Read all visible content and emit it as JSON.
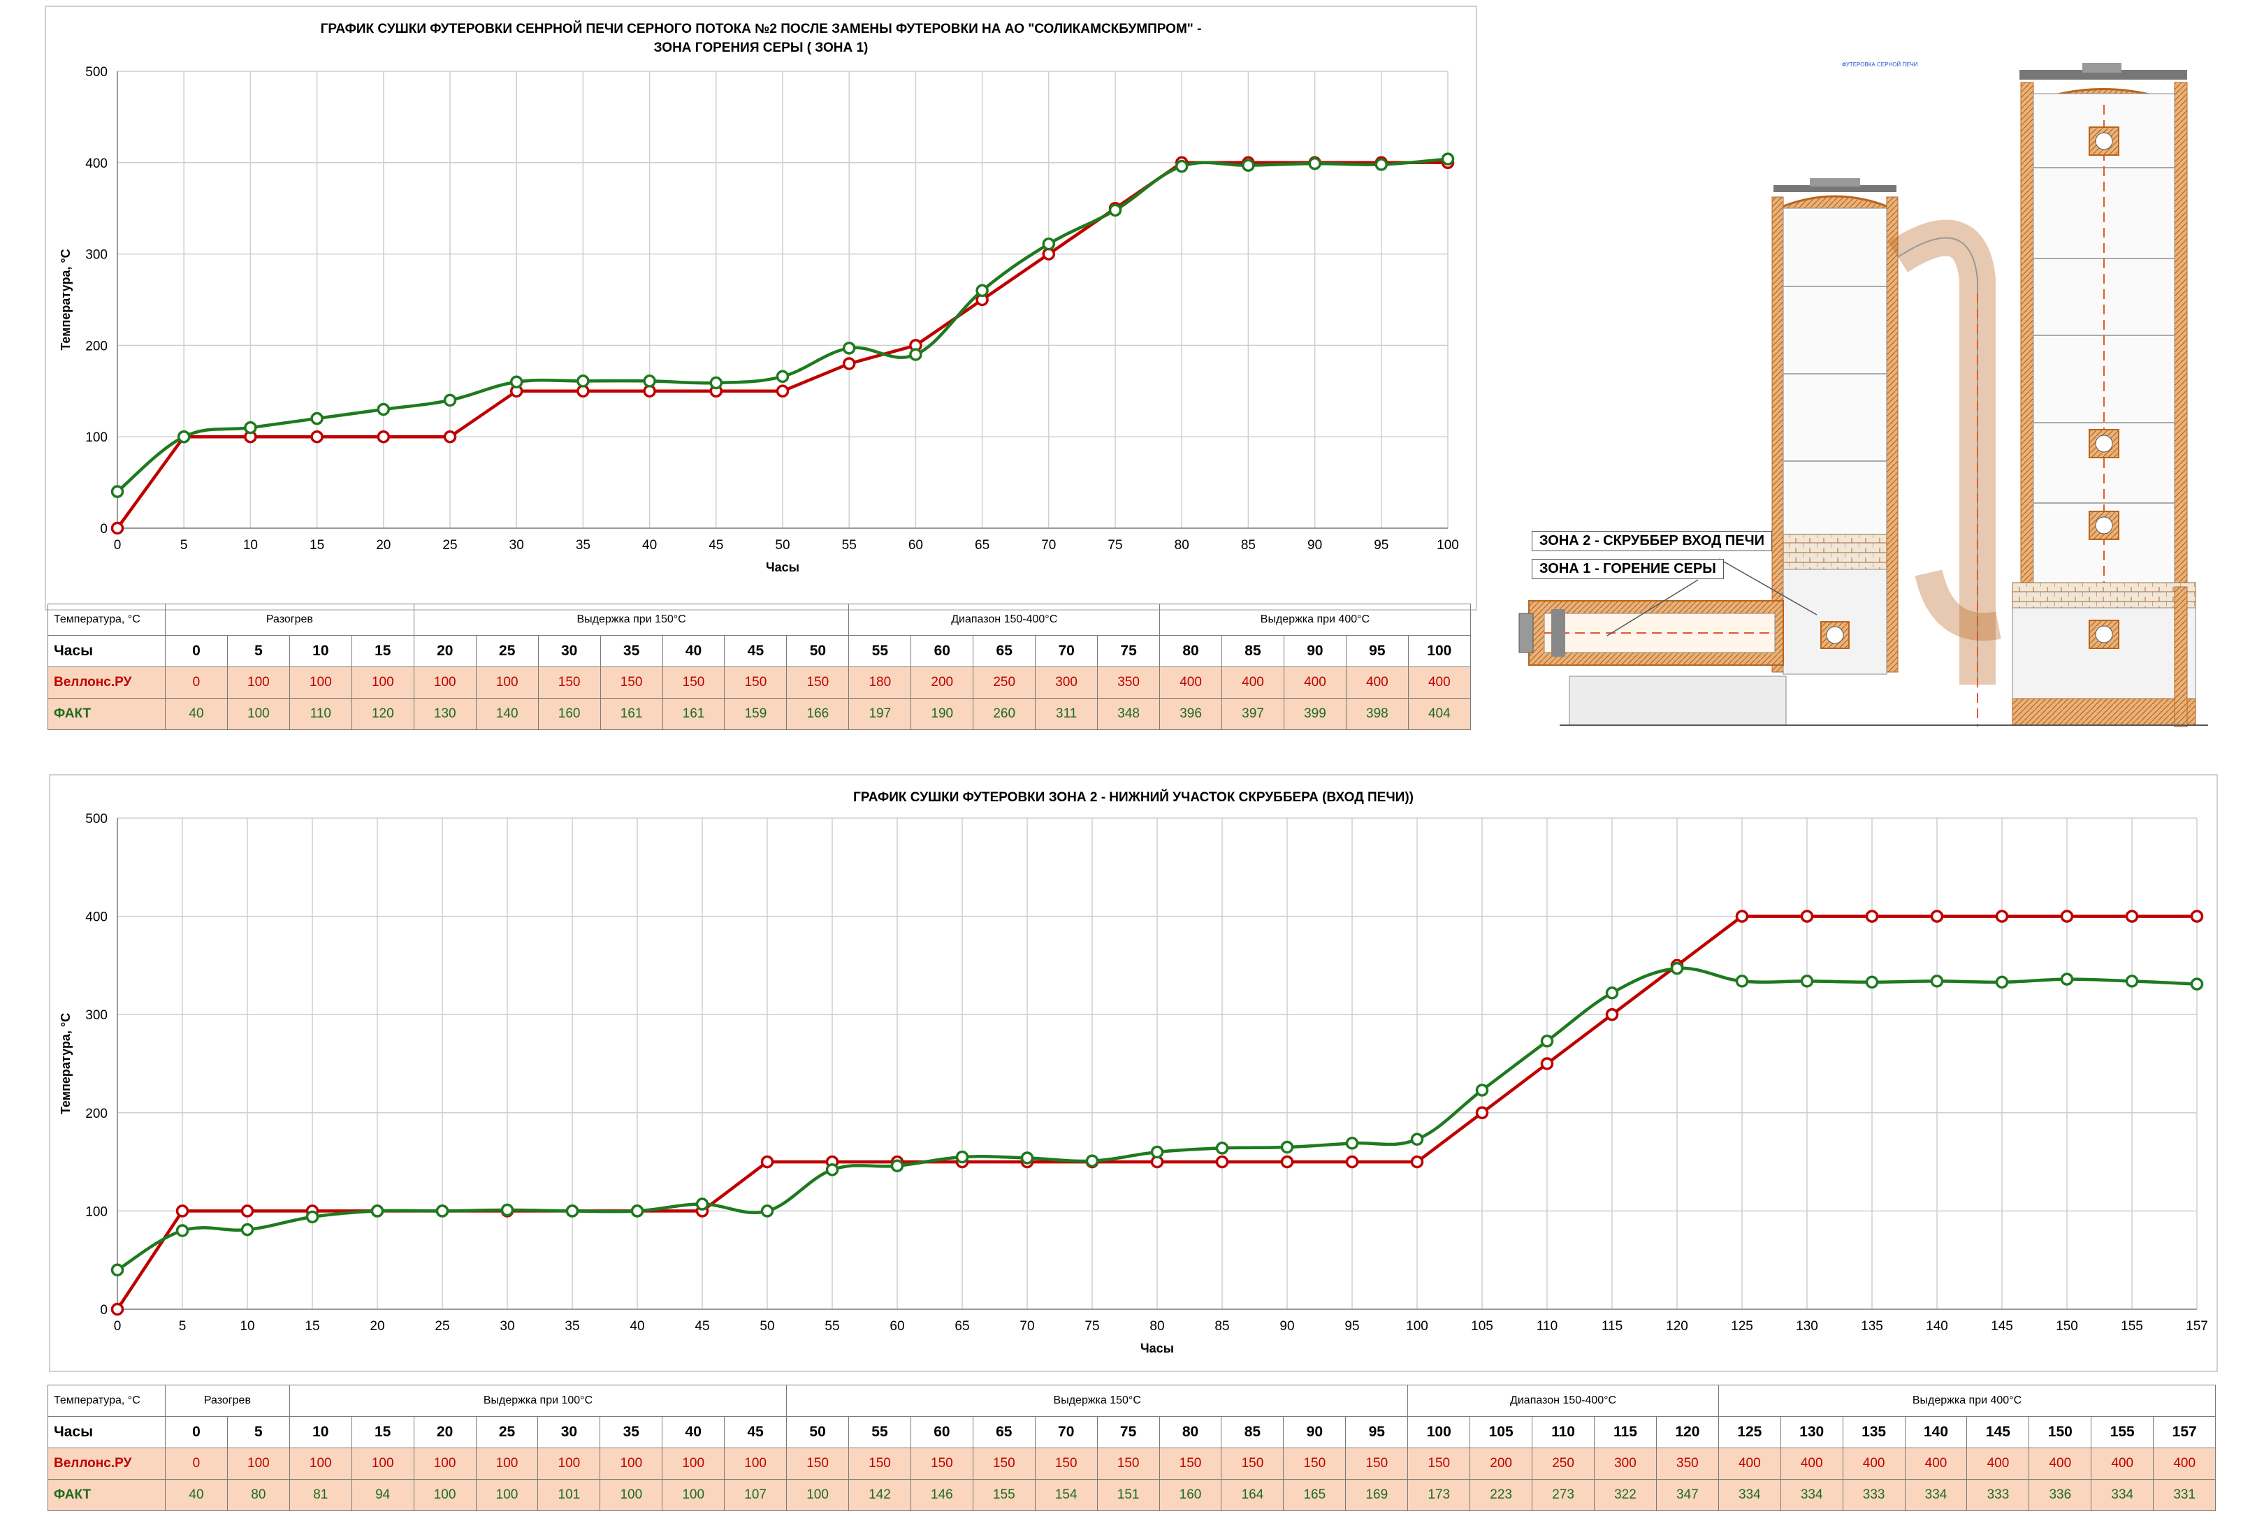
{
  "colors": {
    "plan": "#c00000",
    "fact": "#1e7a1e",
    "table_fill": "#f9d6bd",
    "grid": "#cfcfcf"
  },
  "chart_data": [
    {
      "type": "line",
      "title_line1": "ГРАФИК СУШКИ ФУТЕРОВКИ СЕНРНОЙ ПЕЧИ  СЕРНОГО ПОТОКА №2 ПОСЛЕ ЗАМЕНЫ ФУТЕРОВКИ  НА АО \"СОЛИКАМСКБУМПРОМ\"  -",
      "title_line2": "ЗОНА ГОРЕНИЯ СЕРЫ  ( ЗОНА 1)",
      "xlabel": "Часы",
      "ylabel": "Температура, °С",
      "ylim": [
        0,
        500
      ],
      "yticks": [
        0,
        100,
        200,
        300,
        400,
        500
      ],
      "grid": true,
      "x": [
        0,
        5,
        10,
        15,
        20,
        25,
        30,
        35,
        40,
        45,
        50,
        55,
        60,
        65,
        70,
        75,
        80,
        85,
        90,
        95,
        100
      ],
      "series": [
        {
          "name": "Веллонс.РУ",
          "values": [
            0,
            100,
            100,
            100,
            100,
            100,
            150,
            150,
            150,
            150,
            150,
            180,
            200,
            250,
            300,
            350,
            400,
            400,
            400,
            400,
            400
          ]
        },
        {
          "name": "ФАКТ",
          "values": [
            40,
            100,
            110,
            120,
            130,
            140,
            160,
            161,
            161,
            159,
            166,
            197,
            190,
            260,
            311,
            348,
            396,
            397,
            399,
            398,
            404
          ]
        }
      ],
      "table": {
        "corner_label": "Температура, °С",
        "hours_label": "Часы",
        "groups": [
          {
            "label": "Разогрев",
            "span": 4
          },
          {
            "label": "Выдержка при 150°С",
            "span": 7
          },
          {
            "label": "Диапазон 150-400°С",
            "span": 5
          },
          {
            "label": "Выдержка при 400°С",
            "span": 5
          }
        ]
      }
    },
    {
      "type": "line",
      "title_line1": "ГРАФИК СУШКИ ФУТЕРОВКИ   ЗОНА 2 - НИЖНИЙ УЧАСТОК СКРУББЕРА (ВХОД ПЕЧИ))",
      "title_line2": "",
      "xlabel": "Часы",
      "ylabel": "Температура, °С",
      "ylim": [
        0,
        500
      ],
      "yticks": [
        0,
        100,
        200,
        300,
        400,
        500
      ],
      "grid": true,
      "x": [
        0,
        5,
        10,
        15,
        20,
        25,
        30,
        35,
        40,
        45,
        50,
        55,
        60,
        65,
        70,
        75,
        80,
        85,
        90,
        95,
        100,
        105,
        110,
        115,
        120,
        125,
        130,
        135,
        140,
        145,
        150,
        155,
        157
      ],
      "series": [
        {
          "name": "Веллонс.РУ",
          "values": [
            0,
            100,
            100,
            100,
            100,
            100,
            100,
            100,
            100,
            100,
            150,
            150,
            150,
            150,
            150,
            150,
            150,
            150,
            150,
            150,
            150,
            200,
            250,
            300,
            350,
            400,
            400,
            400,
            400,
            400,
            400,
            400,
            400
          ]
        },
        {
          "name": "ФАКТ",
          "values": [
            40,
            80,
            81,
            94,
            100,
            100,
            101,
            100,
            100,
            107,
            100,
            142,
            146,
            155,
            154,
            151,
            160,
            164,
            165,
            169,
            173,
            223,
            273,
            322,
            347,
            334,
            334,
            333,
            334,
            333,
            336,
            334,
            331
          ]
        }
      ],
      "table": {
        "corner_label": "Температура, °С",
        "hours_label": "Часы",
        "groups": [
          {
            "label": "Разогрев",
            "span": 2
          },
          {
            "label": "Выдержка при 100°С",
            "span": 8
          },
          {
            "label": "Выдержка 150°С",
            "span": 10
          },
          {
            "label": "Диапазон 150-400°С",
            "span": 5
          },
          {
            "label": "Выдержка при 400°С",
            "span": 8
          }
        ]
      }
    }
  ],
  "diagram": {
    "zone2_label": "ЗОНА 2 - СКРУББЕР  ВХОД ПЕЧИ",
    "zone1_label": "ЗОНА 1 - ГОРЕНИЕ СЕРЫ",
    "tiny_label": "ФУТЕРОВКА СЕРНОЙ ПЕЧИ"
  }
}
